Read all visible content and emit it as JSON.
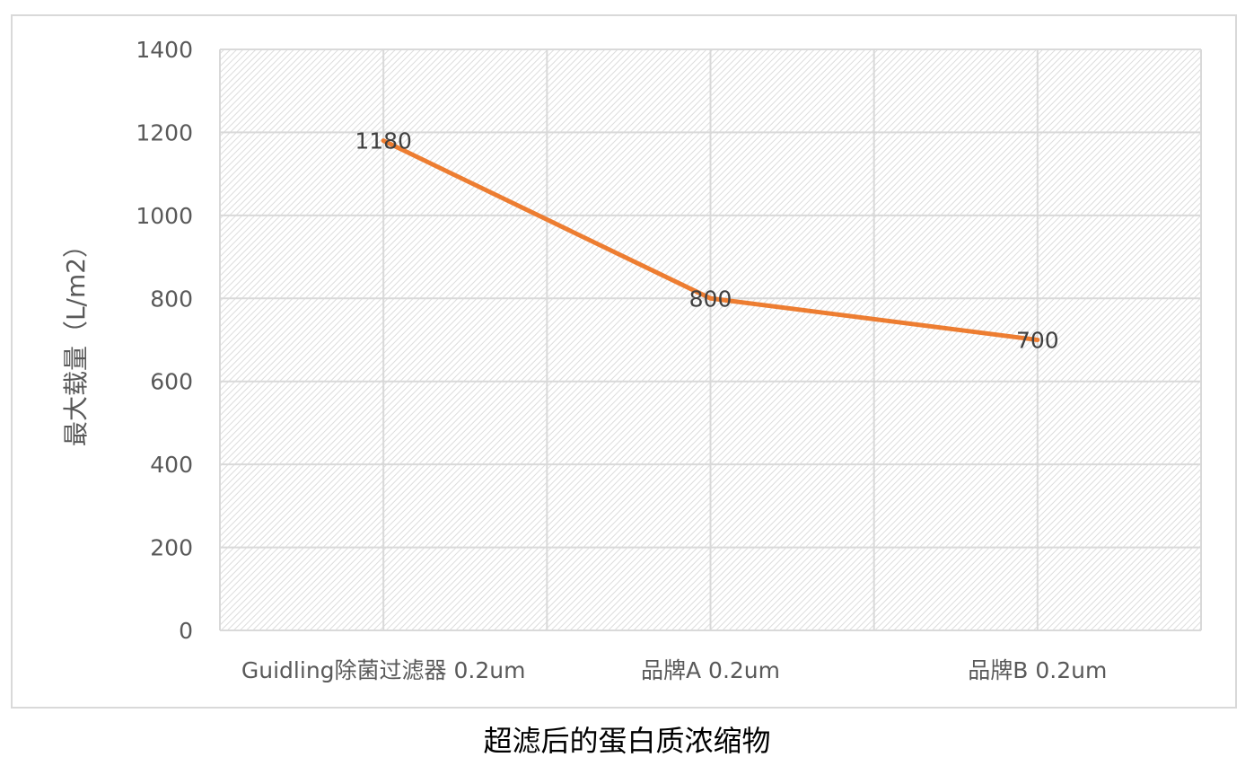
{
  "chart_data": {
    "type": "line",
    "title": "",
    "xlabel": "",
    "ylabel": "最大载量（L/m2）",
    "categories": [
      "Guidling除菌过滤器 0.2um",
      "品牌A 0.2um",
      "品牌B 0.2um"
    ],
    "series": [
      {
        "name": "",
        "values": [
          1180,
          800,
          700
        ],
        "color": "#ED7D31"
      }
    ],
    "data_labels": [
      "1180",
      "800",
      "700"
    ],
    "ylim": [
      0,
      1400
    ],
    "yticks": [
      0,
      200,
      400,
      600,
      800,
      1000,
      1200,
      1400
    ],
    "grid": true,
    "legend": "none",
    "plot_background": "hatched light gray"
  },
  "caption": "超滤后的蛋白质浓缩物"
}
